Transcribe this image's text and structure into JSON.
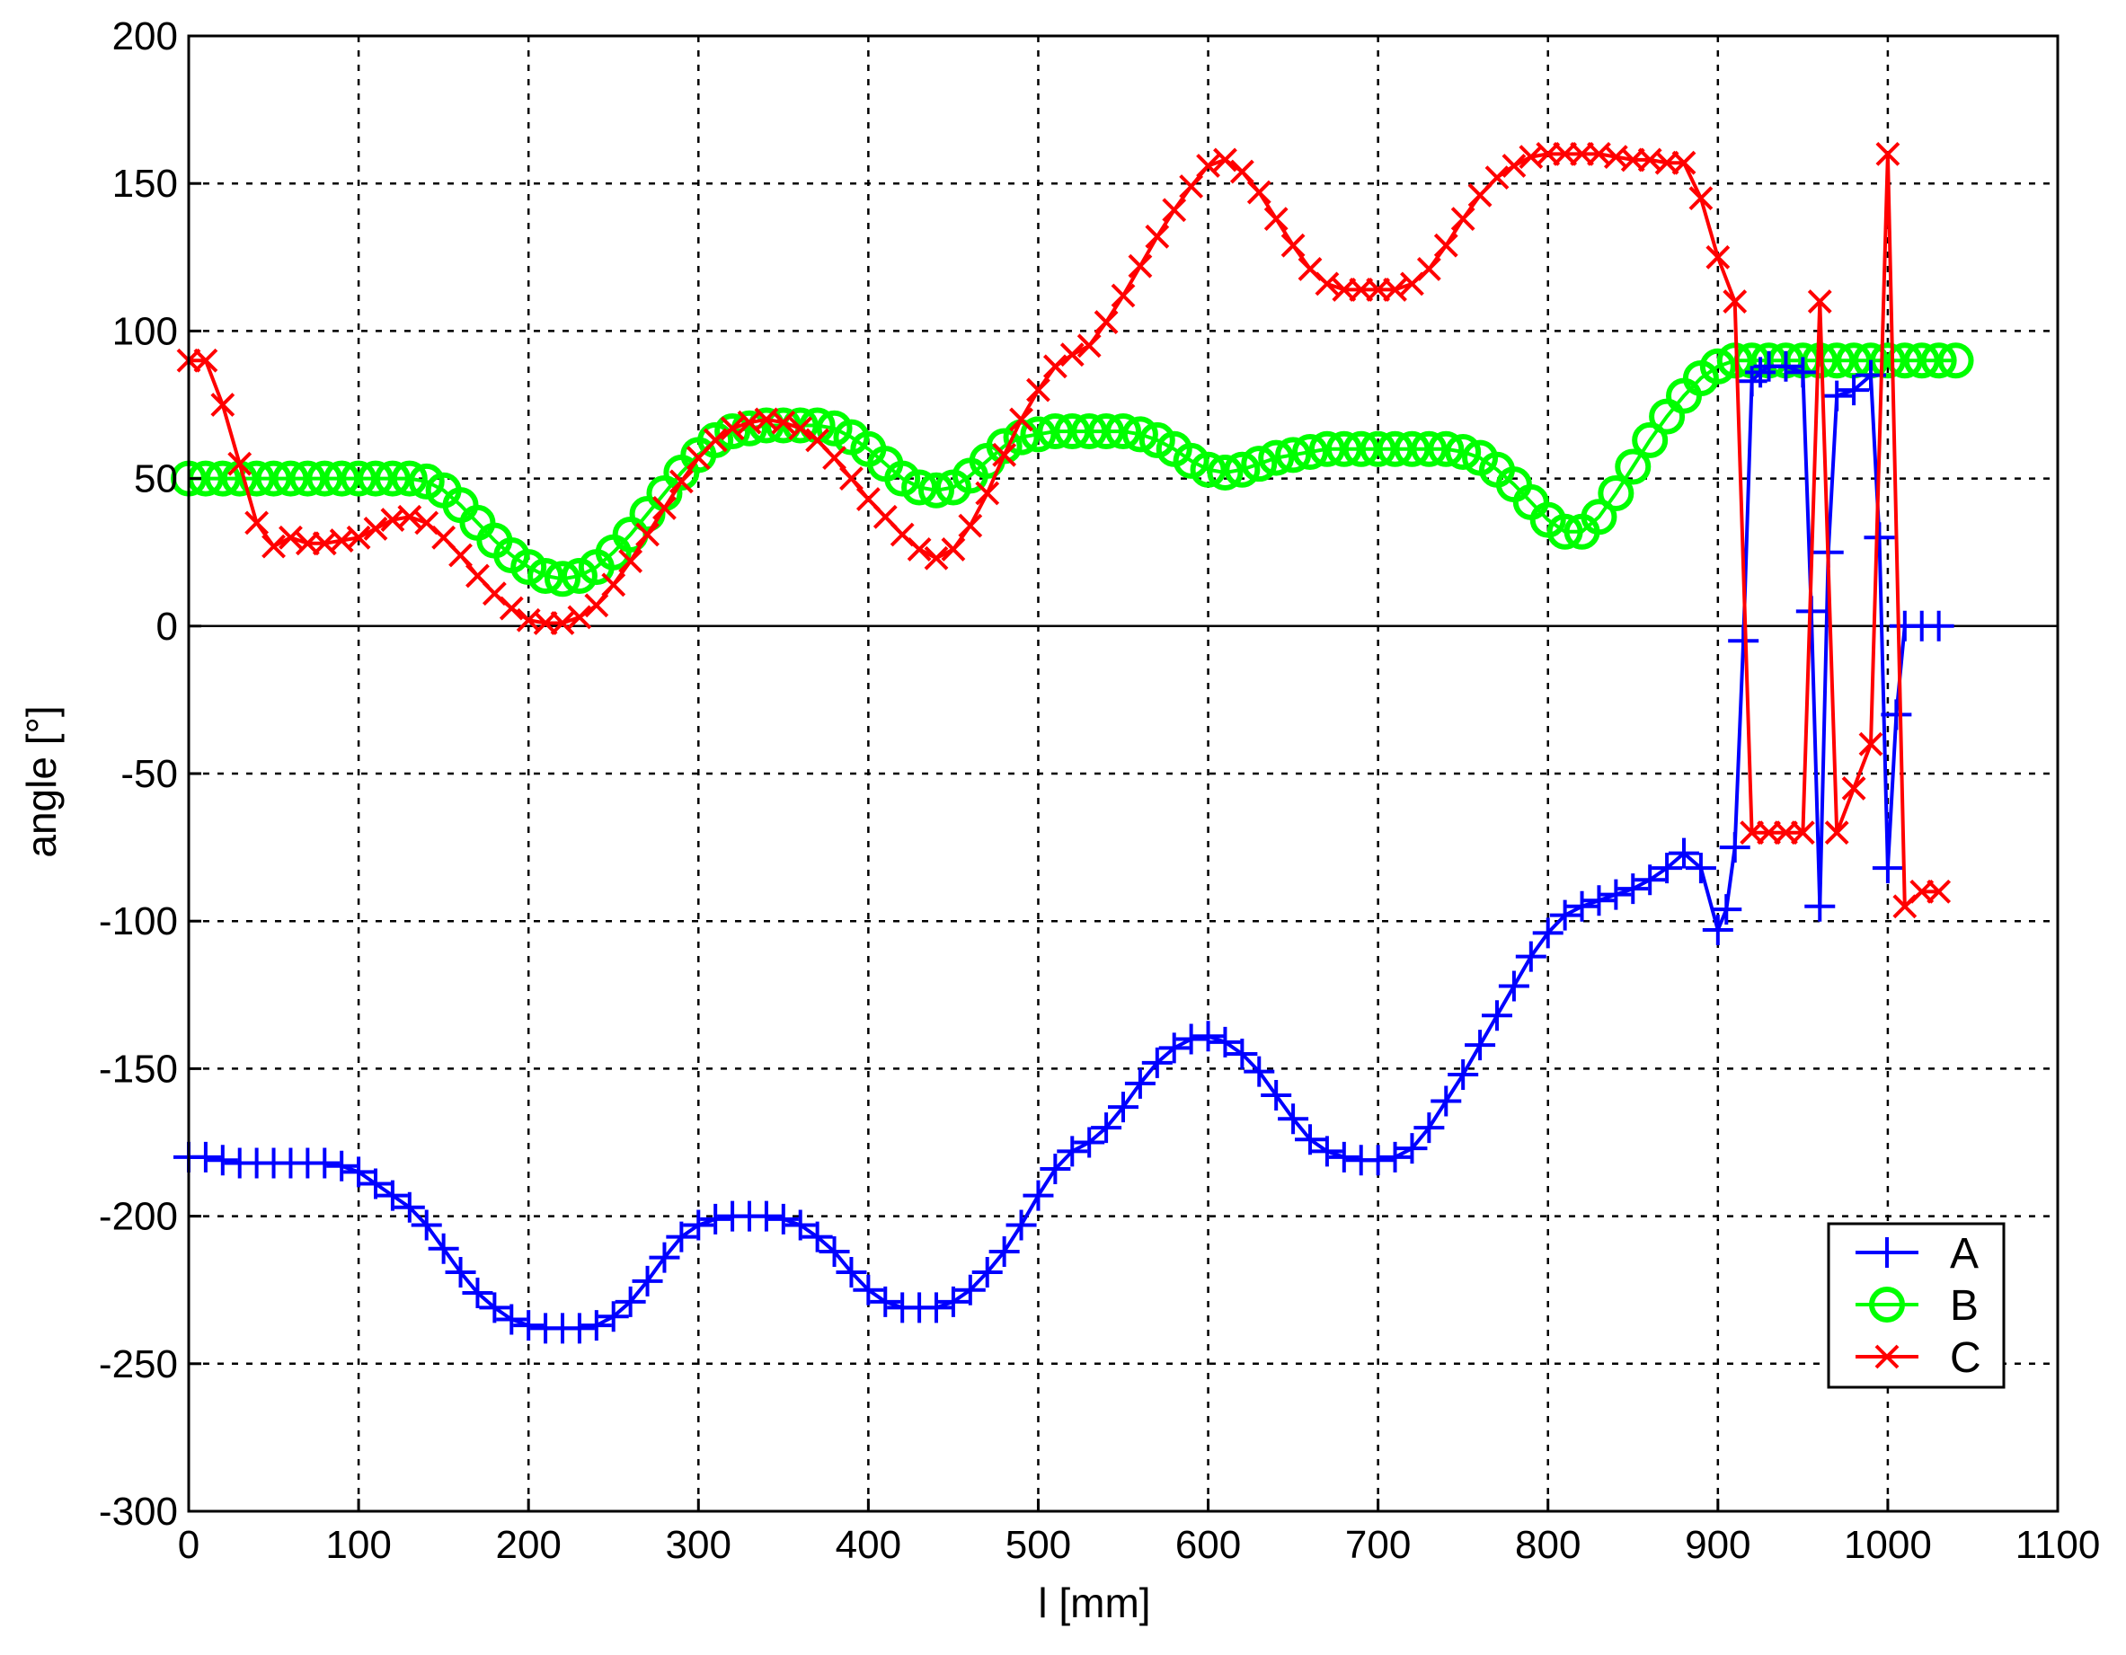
{
  "chart_data": {
    "type": "line",
    "xlabel": "l [mm]",
    "ylabel": "angle [°]",
    "xlim": [
      0,
      1100
    ],
    "ylim": [
      -300,
      200
    ],
    "xticks": [
      0,
      100,
      200,
      300,
      400,
      500,
      600,
      700,
      800,
      900,
      1000,
      1100
    ],
    "yticks": [
      200,
      150,
      100,
      50,
      0,
      -50,
      -100,
      -150,
      -200,
      -250,
      -300
    ],
    "grid": true,
    "legend_position": "bottom-right",
    "series": [
      {
        "name": "A",
        "marker": "plus",
        "color": "#0000ff",
        "x": [
          0,
          10,
          20,
          30,
          40,
          50,
          60,
          70,
          80,
          90,
          100,
          110,
          120,
          130,
          140,
          150,
          160,
          170,
          180,
          190,
          200,
          210,
          220,
          230,
          240,
          250,
          260,
          270,
          280,
          290,
          300,
          310,
          320,
          330,
          340,
          350,
          360,
          370,
          380,
          390,
          400,
          410,
          420,
          430,
          440,
          450,
          460,
          470,
          480,
          490,
          500,
          510,
          520,
          530,
          540,
          550,
          560,
          570,
          580,
          590,
          600,
          610,
          620,
          630,
          640,
          650,
          660,
          670,
          680,
          690,
          700,
          710,
          720,
          730,
          740,
          750,
          760,
          770,
          780,
          790,
          800,
          810,
          820,
          830,
          840,
          850,
          860,
          870,
          880,
          890,
          900,
          905,
          910,
          915,
          920,
          925,
          930,
          940,
          950,
          955,
          960,
          965,
          970,
          980,
          990,
          995,
          1000,
          1005,
          1010,
          1020,
          1030
        ],
        "y": [
          -180,
          -180,
          -181,
          -182,
          -182,
          -182,
          -182,
          -182,
          -182,
          -183,
          -185,
          -189,
          -193,
          -197,
          -203,
          -211,
          -219,
          -226,
          -231,
          -235,
          -237,
          -238,
          -238,
          -238,
          -237,
          -234,
          -229,
          -222,
          -214,
          -207,
          -203,
          -201,
          -200,
          -200,
          -200,
          -201,
          -203,
          -207,
          -212,
          -219,
          -225,
          -229,
          -231,
          -231,
          -231,
          -229,
          -225,
          -219,
          -212,
          -203,
          -193,
          -184,
          -178,
          -175,
          -170,
          -163,
          -155,
          -148,
          -143,
          -140,
          -139,
          -141,
          -145,
          -151,
          -159,
          -167,
          -174,
          -178,
          -180,
          -181,
          -181,
          -180,
          -177,
          -170,
          -161,
          -152,
          -142,
          -132,
          -122,
          -112,
          -104,
          -98,
          -95,
          -93,
          -91,
          -89,
          -86,
          -82,
          -77,
          -82,
          -103,
          -96,
          -75,
          -5,
          83,
          86,
          88,
          88,
          86,
          5,
          -95,
          25,
          78,
          80,
          85,
          30,
          -82,
          -30,
          0,
          0,
          0
        ]
      },
      {
        "name": "B",
        "marker": "circle",
        "color": "#00ff00",
        "x": [
          0,
          10,
          20,
          30,
          40,
          50,
          60,
          70,
          80,
          90,
          100,
          110,
          120,
          130,
          140,
          150,
          160,
          170,
          180,
          190,
          200,
          210,
          220,
          230,
          240,
          250,
          260,
          270,
          280,
          290,
          300,
          310,
          320,
          330,
          340,
          350,
          360,
          370,
          380,
          390,
          400,
          410,
          420,
          430,
          440,
          450,
          460,
          470,
          480,
          490,
          500,
          510,
          520,
          530,
          540,
          550,
          560,
          570,
          580,
          590,
          600,
          610,
          620,
          630,
          640,
          650,
          660,
          670,
          680,
          690,
          700,
          710,
          720,
          730,
          740,
          750,
          760,
          770,
          780,
          790,
          800,
          810,
          820,
          830,
          840,
          850,
          860,
          870,
          880,
          890,
          900,
          910,
          920,
          930,
          940,
          950,
          960,
          970,
          980,
          990,
          1000,
          1010,
          1020,
          1030,
          1040
        ],
        "y": [
          50,
          50,
          50,
          50,
          50,
          50,
          50,
          50,
          50,
          50,
          50,
          50,
          50,
          50,
          49,
          46,
          41,
          35,
          29,
          24,
          20,
          17,
          16,
          17,
          20,
          25,
          31,
          38,
          45,
          52,
          58,
          63,
          66,
          67,
          68,
          68,
          68,
          68,
          67,
          64,
          60,
          55,
          50,
          47,
          46,
          47,
          51,
          56,
          61,
          64,
          65,
          66,
          66,
          66,
          66,
          66,
          65,
          63,
          60,
          56,
          53,
          52,
          53,
          55,
          57,
          58,
          59,
          60,
          60,
          60,
          60,
          60,
          60,
          60,
          60,
          59,
          57,
          53,
          48,
          42,
          36,
          32,
          32,
          37,
          45,
          54,
          63,
          71,
          78,
          84,
          88,
          90,
          90,
          90,
          90,
          90,
          90,
          90,
          90,
          90,
          90,
          90,
          90,
          90,
          90
        ]
      },
      {
        "name": "C",
        "marker": "x",
        "color": "#ff0000",
        "x": [
          0,
          10,
          20,
          30,
          40,
          50,
          60,
          70,
          80,
          90,
          100,
          110,
          120,
          130,
          140,
          150,
          160,
          170,
          180,
          190,
          200,
          210,
          220,
          230,
          240,
          250,
          260,
          270,
          280,
          290,
          300,
          310,
          320,
          330,
          340,
          350,
          360,
          370,
          380,
          390,
          400,
          410,
          420,
          430,
          440,
          450,
          460,
          470,
          480,
          490,
          500,
          510,
          520,
          530,
          540,
          550,
          560,
          570,
          580,
          590,
          600,
          610,
          620,
          630,
          640,
          650,
          660,
          670,
          680,
          690,
          700,
          710,
          720,
          730,
          740,
          750,
          760,
          770,
          780,
          790,
          800,
          810,
          820,
          830,
          840,
          850,
          860,
          870,
          880,
          890,
          900,
          910,
          920,
          930,
          940,
          950,
          960,
          970,
          980,
          990,
          1000,
          1010,
          1020,
          1030
        ],
        "y": [
          90,
          90,
          75,
          55,
          35,
          27,
          30,
          28,
          28,
          29,
          30,
          33,
          36,
          37,
          35,
          30,
          24,
          17,
          11,
          6,
          2,
          1,
          1,
          3,
          7,
          14,
          22,
          31,
          40,
          49,
          57,
          63,
          67,
          69,
          70,
          69,
          67,
          63,
          57,
          50,
          43,
          37,
          31,
          26,
          23,
          26,
          34,
          45,
          58,
          70,
          80,
          88,
          92,
          95,
          103,
          112,
          122,
          132,
          141,
          149,
          156,
          158,
          154,
          147,
          138,
          129,
          121,
          116,
          114,
          114,
          114,
          114,
          116,
          121,
          129,
          138,
          146,
          152,
          156,
          159,
          160,
          160,
          160,
          160,
          159,
          158,
          158,
          157,
          157,
          145,
          125,
          110,
          -70,
          -70,
          -70,
          -70,
          110,
          -70,
          -55,
          -40,
          160,
          -95,
          -90,
          -90
        ]
      }
    ]
  }
}
